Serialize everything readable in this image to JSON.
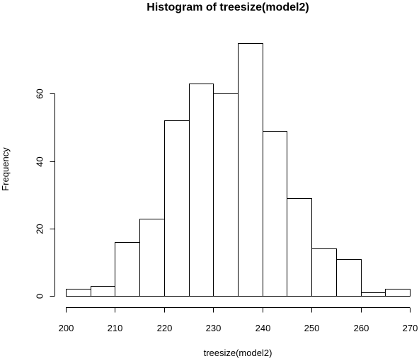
{
  "chart_data": {
    "type": "bar",
    "title": "Histogram of treesize(model2)",
    "xlabel": "treesize(model2)",
    "ylabel": "Frequency",
    "bins": [
      {
        "from": 200,
        "to": 205,
        "count": 2
      },
      {
        "from": 205,
        "to": 210,
        "count": 3
      },
      {
        "from": 210,
        "to": 215,
        "count": 16
      },
      {
        "from": 215,
        "to": 220,
        "count": 23
      },
      {
        "from": 220,
        "to": 225,
        "count": 52
      },
      {
        "from": 225,
        "to": 230,
        "count": 63
      },
      {
        "from": 230,
        "to": 235,
        "count": 60
      },
      {
        "from": 235,
        "to": 240,
        "count": 75
      },
      {
        "from": 240,
        "to": 245,
        "count": 49
      },
      {
        "from": 245,
        "to": 250,
        "count": 29
      },
      {
        "from": 250,
        "to": 255,
        "count": 14
      },
      {
        "from": 255,
        "to": 260,
        "count": 11
      },
      {
        "from": 260,
        "to": 265,
        "count": 1
      },
      {
        "from": 265,
        "to": 270,
        "count": 2
      }
    ],
    "xticks": [
      200,
      210,
      220,
      230,
      240,
      250,
      260,
      270
    ],
    "yticks": [
      0,
      20,
      40,
      60
    ],
    "xlim": [
      200,
      270
    ],
    "ylim": [
      0,
      75
    ],
    "grid": false,
    "bar_fill": "#ffffff",
    "bar_stroke": "#000000"
  }
}
